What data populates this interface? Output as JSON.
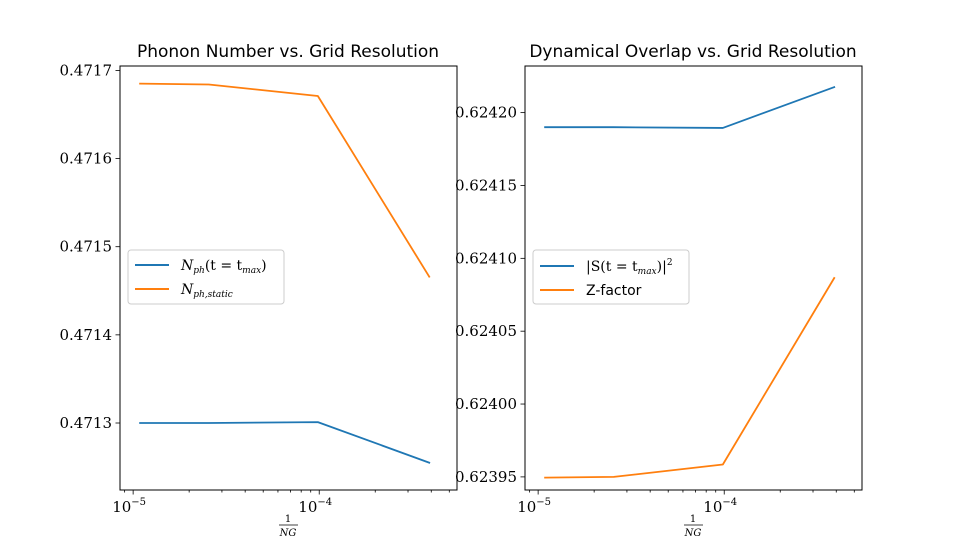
{
  "chart_data": [
    {
      "type": "line",
      "title": "Phonon Number vs. Grid Resolution",
      "xlabel_num": "1",
      "xlabel_den": "NG",
      "xscale": "log",
      "xlim": [
        8.5e-06,
        0.00055
      ],
      "ylim": [
        0.471224,
        0.471705
      ],
      "x": [
        1.09e-05,
        2.55e-05,
        9.83e-05,
        0.00039
      ],
      "xticks": [
        {
          "value": 1e-05,
          "base": "10",
          "exp": "−5"
        },
        {
          "value": 0.0001,
          "base": "10",
          "exp": "−4"
        }
      ],
      "yticks": [
        {
          "value": 0.4713,
          "label": "0.4713"
        },
        {
          "value": 0.4714,
          "label": "0.4714"
        },
        {
          "value": 0.4715,
          "label": "0.4715"
        },
        {
          "value": 0.4716,
          "label": "0.4716"
        },
        {
          "value": 0.4717,
          "label": "0.4717"
        }
      ],
      "legend_position": "center-left",
      "series": [
        {
          "name": "N_ph(t = t_max)",
          "legend_main": "N",
          "legend_sub": "ph",
          "legend_rest": "(t = t",
          "legend_sub2": "max",
          "legend_end": ")",
          "color": "#1f77b4",
          "values": [
            0.4713,
            0.4713,
            0.471301,
            0.471255
          ]
        },
        {
          "name": "N_ph,static",
          "legend_main": "N",
          "legend_sub": "ph,static",
          "color": "#ff7f0e",
          "values": [
            0.471685,
            0.471684,
            0.471671,
            0.471466
          ]
        }
      ]
    },
    {
      "type": "line",
      "title": "Dynamical Overlap vs. Grid Resolution",
      "xlabel_num": "1",
      "xlabel_den": "NG",
      "xscale": "log",
      "xlim": [
        8.5e-06,
        0.00055
      ],
      "ylim": [
        0.623941,
        0.624232
      ],
      "x": [
        1.09e-05,
        2.55e-05,
        9.83e-05,
        0.00039
      ],
      "xticks": [
        {
          "value": 1e-05,
          "base": "10",
          "exp": "−5"
        },
        {
          "value": 0.0001,
          "base": "10",
          "exp": "−4"
        }
      ],
      "yticks": [
        {
          "value": 0.62395,
          "label": "0.62395"
        },
        {
          "value": 0.624,
          "label": "0.62400"
        },
        {
          "value": 0.62405,
          "label": "0.62405"
        },
        {
          "value": 0.6241,
          "label": "0.62410"
        },
        {
          "value": 0.62415,
          "label": "0.62415"
        },
        {
          "value": 0.6242,
          "label": "0.62420"
        }
      ],
      "legend_position": "center-left",
      "series": [
        {
          "name": "|S(t = t_max)|^2",
          "legend_main": "|S(t = t",
          "legend_sub": "max",
          "legend_rest": ")|",
          "legend_sup": "2",
          "color": "#1f77b4",
          "values": [
            0.62419,
            0.62419,
            0.6241895,
            0.6242175
          ]
        },
        {
          "name": "Z-factor",
          "legend_plain": "Z-factor",
          "color": "#ff7f0e",
          "values": [
            0.6239495,
            0.62395,
            0.6239585,
            0.6240865
          ]
        }
      ]
    }
  ]
}
